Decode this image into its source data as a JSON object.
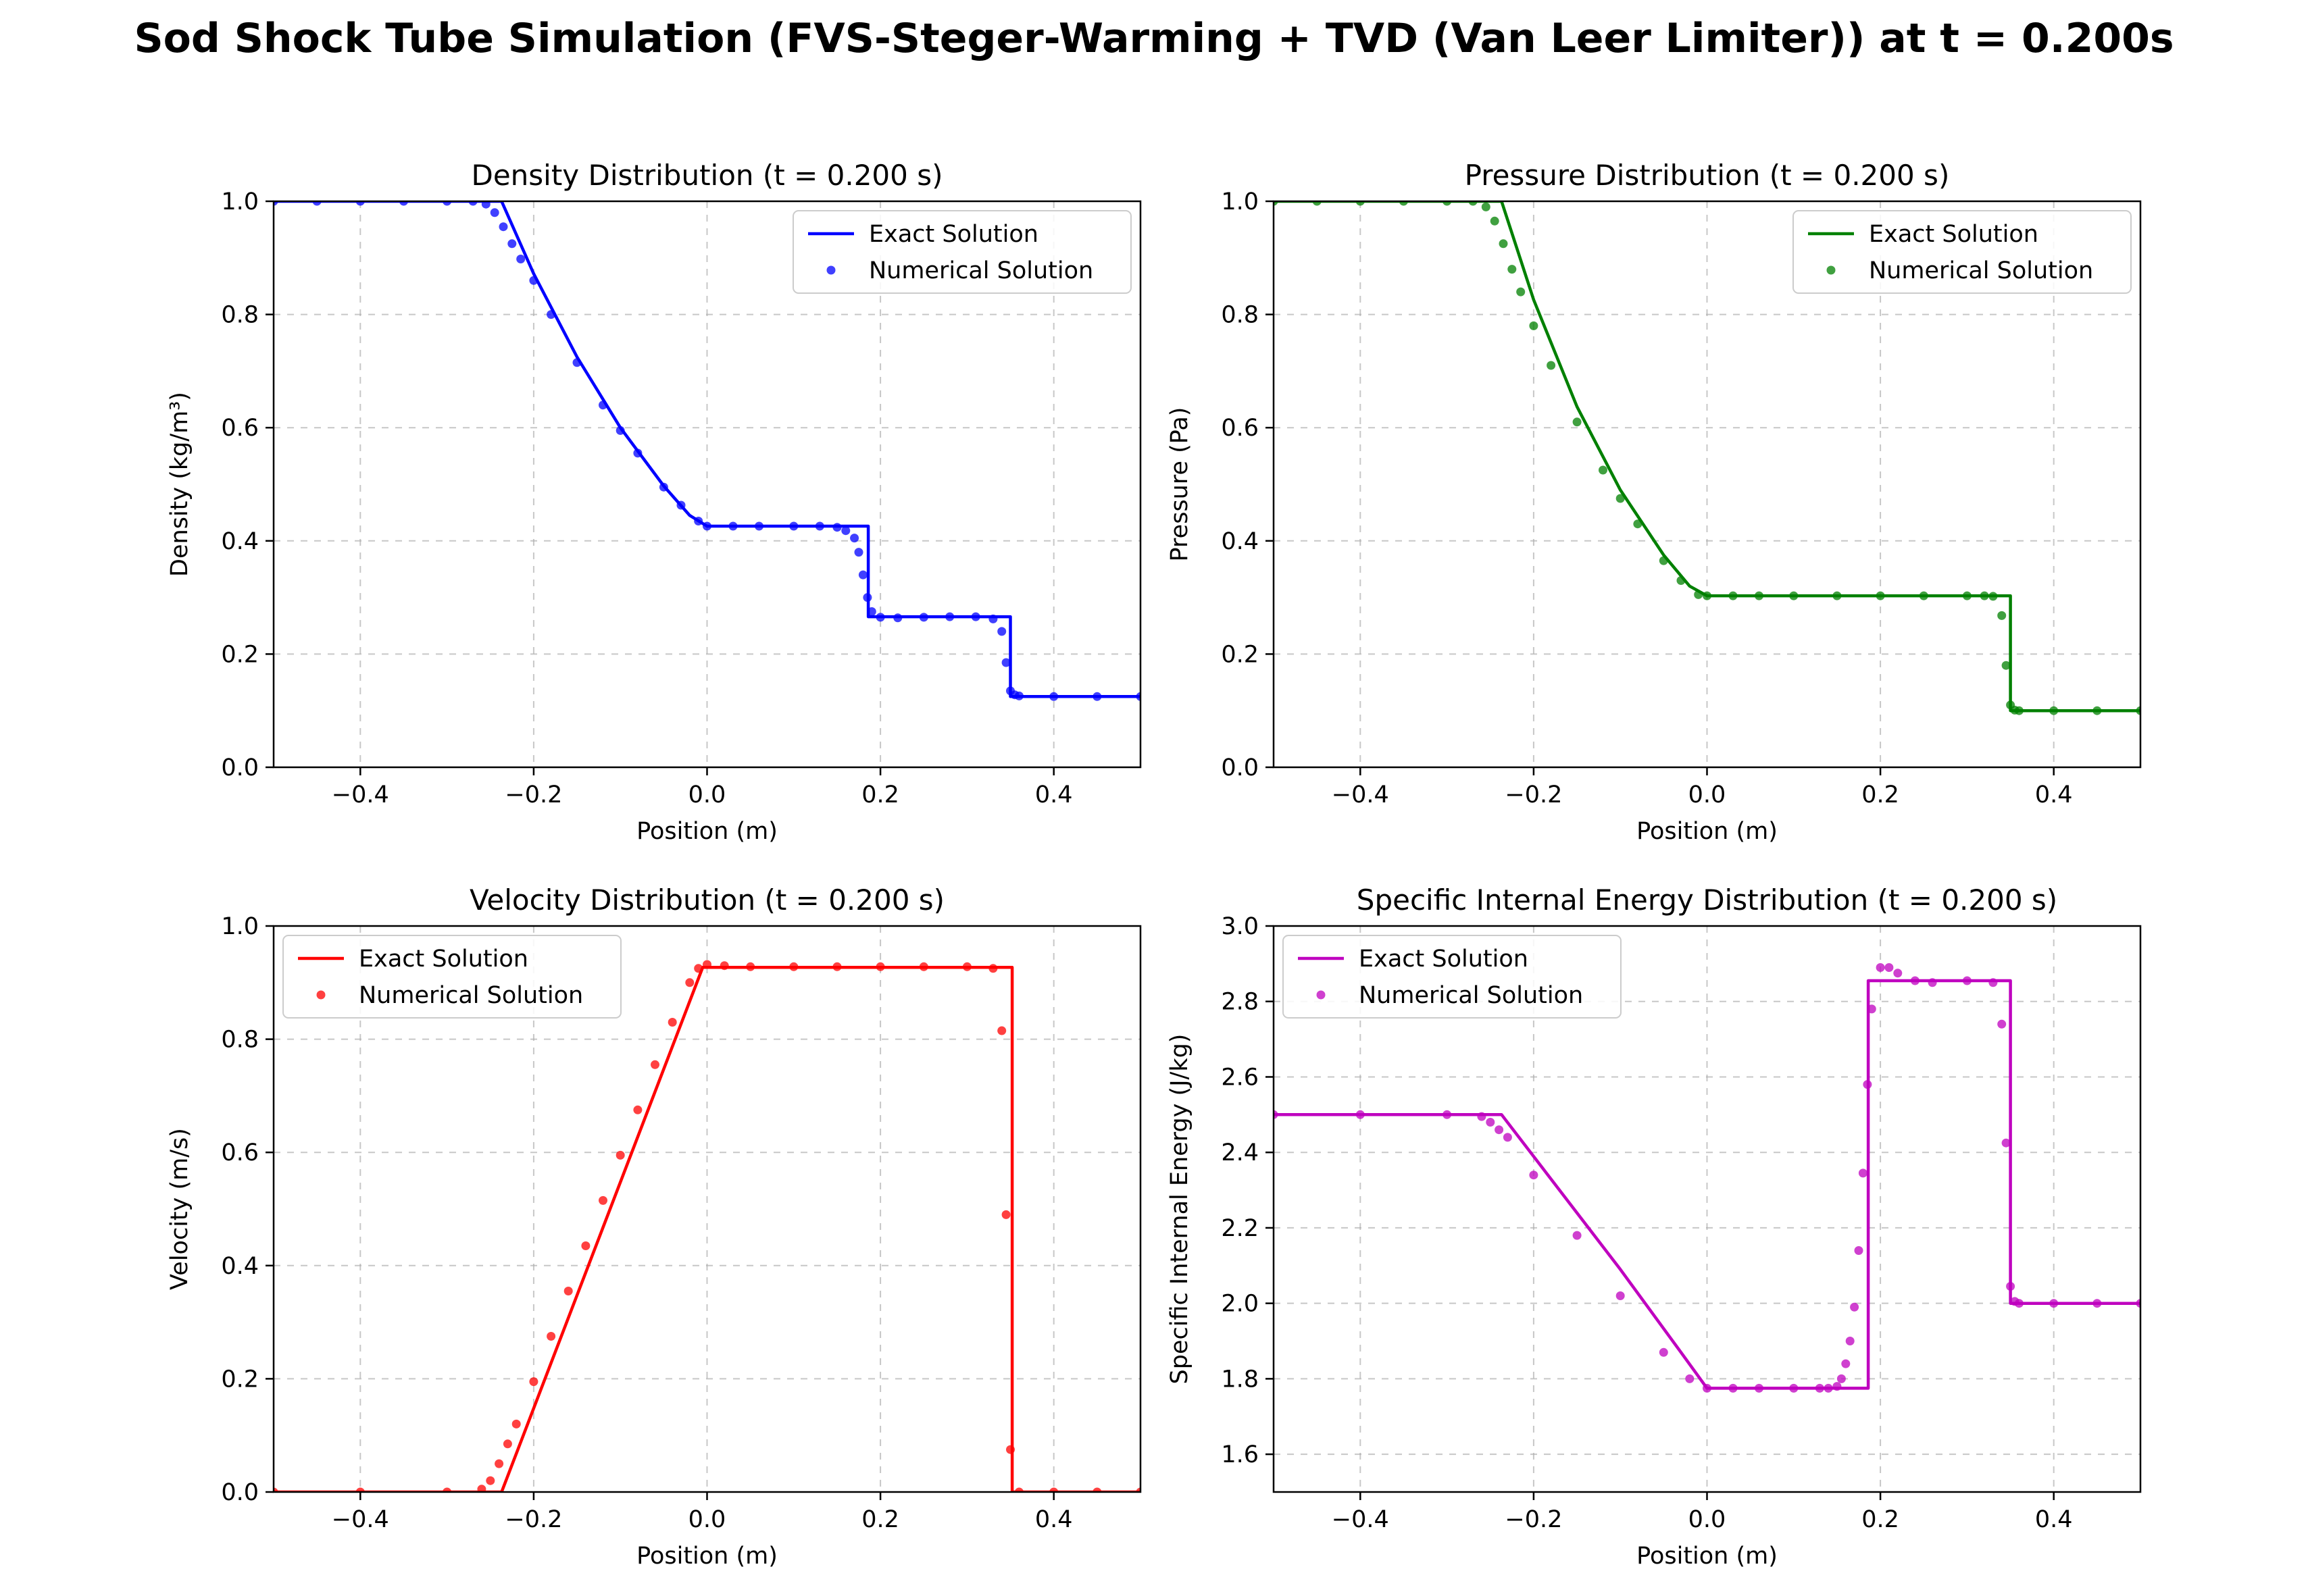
{
  "figure": {
    "suptitle": "Sod Shock Tube Simulation (FVS-Steger-Warming + TVD (Van Leer Limiter)) at t = 0.200s"
  },
  "chart_data": [
    {
      "type": "line",
      "title": "Density Distribution (t = 0.200 s)",
      "xlabel": "Position (m)",
      "ylabel": "Density (kg/m³)",
      "xlim": [
        -0.5,
        0.5
      ],
      "ylim": [
        0.0,
        1.0
      ],
      "xticks": [
        -0.4,
        -0.2,
        0.0,
        0.2,
        0.4
      ],
      "xtick_labels": [
        "−0.4",
        "−0.2",
        "0.0",
        "0.2",
        "0.4"
      ],
      "yticks": [
        0.0,
        0.2,
        0.4,
        0.6,
        0.8,
        1.0
      ],
      "ytick_labels": [
        "0.0",
        "0.2",
        "0.4",
        "0.6",
        "0.8",
        "1.0"
      ],
      "grid": true,
      "legend_position": "top-right",
      "color": "#0000ff",
      "series": [
        {
          "name": "Exact Solution",
          "kind": "line",
          "x": [
            -0.5,
            -0.237,
            -0.2,
            -0.15,
            -0.1,
            -0.05,
            -0.02,
            0.0,
            0.186,
            0.186,
            0.35,
            0.35,
            0.5
          ],
          "y": [
            1.0,
            1.0,
            0.872,
            0.725,
            0.6,
            0.497,
            0.445,
            0.426,
            0.426,
            0.266,
            0.266,
            0.125,
            0.125
          ]
        },
        {
          "name": "Numerical Solution",
          "kind": "scatter",
          "x": [
            -0.5,
            -0.45,
            -0.4,
            -0.35,
            -0.3,
            -0.27,
            -0.255,
            -0.245,
            -0.235,
            -0.225,
            -0.215,
            -0.2,
            -0.18,
            -0.15,
            -0.12,
            -0.1,
            -0.08,
            -0.05,
            -0.03,
            -0.01,
            0.0,
            0.03,
            0.06,
            0.1,
            0.13,
            0.15,
            0.16,
            0.17,
            0.175,
            0.18,
            0.185,
            0.19,
            0.2,
            0.22,
            0.25,
            0.28,
            0.31,
            0.33,
            0.34,
            0.345,
            0.35,
            0.355,
            0.36,
            0.4,
            0.45,
            0.5
          ],
          "y": [
            1.0,
            1.0,
            1.0,
            1.0,
            1.0,
            1.0,
            0.995,
            0.98,
            0.955,
            0.925,
            0.898,
            0.86,
            0.8,
            0.715,
            0.64,
            0.595,
            0.555,
            0.495,
            0.463,
            0.435,
            0.426,
            0.426,
            0.426,
            0.426,
            0.426,
            0.424,
            0.418,
            0.405,
            0.38,
            0.34,
            0.3,
            0.275,
            0.265,
            0.264,
            0.265,
            0.266,
            0.266,
            0.262,
            0.24,
            0.185,
            0.135,
            0.128,
            0.126,
            0.125,
            0.125,
            0.125
          ]
        }
      ]
    },
    {
      "type": "line",
      "title": "Pressure Distribution (t = 0.200 s)",
      "xlabel": "Position (m)",
      "ylabel": "Pressure (Pa)",
      "xlim": [
        -0.5,
        0.5
      ],
      "ylim": [
        0.0,
        1.0
      ],
      "xticks": [
        -0.4,
        -0.2,
        0.0,
        0.2,
        0.4
      ],
      "xtick_labels": [
        "−0.4",
        "−0.2",
        "0.0",
        "0.2",
        "0.4"
      ],
      "yticks": [
        0.0,
        0.2,
        0.4,
        0.6,
        0.8,
        1.0
      ],
      "ytick_labels": [
        "0.0",
        "0.2",
        "0.4",
        "0.6",
        "0.8",
        "1.0"
      ],
      "grid": true,
      "legend_position": "top-right",
      "color": "#008000",
      "series": [
        {
          "name": "Exact Solution",
          "kind": "line",
          "x": [
            -0.5,
            -0.237,
            -0.2,
            -0.15,
            -0.1,
            -0.05,
            -0.02,
            0.0,
            0.35,
            0.35,
            0.5
          ],
          "y": [
            1.0,
            1.0,
            0.826,
            0.637,
            0.49,
            0.375,
            0.32,
            0.303,
            0.303,
            0.1,
            0.1
          ]
        },
        {
          "name": "Numerical Solution",
          "kind": "scatter",
          "x": [
            -0.5,
            -0.45,
            -0.4,
            -0.35,
            -0.3,
            -0.27,
            -0.255,
            -0.245,
            -0.235,
            -0.225,
            -0.215,
            -0.2,
            -0.18,
            -0.15,
            -0.12,
            -0.1,
            -0.08,
            -0.05,
            -0.03,
            -0.01,
            0.0,
            0.03,
            0.06,
            0.1,
            0.15,
            0.2,
            0.25,
            0.3,
            0.32,
            0.33,
            0.34,
            0.345,
            0.35,
            0.355,
            0.36,
            0.4,
            0.45,
            0.5
          ],
          "y": [
            1.0,
            1.0,
            1.0,
            1.0,
            1.0,
            1.0,
            0.99,
            0.965,
            0.925,
            0.88,
            0.84,
            0.78,
            0.71,
            0.61,
            0.525,
            0.475,
            0.43,
            0.365,
            0.33,
            0.305,
            0.303,
            0.303,
            0.303,
            0.303,
            0.303,
            0.303,
            0.303,
            0.303,
            0.303,
            0.302,
            0.268,
            0.18,
            0.11,
            0.101,
            0.1,
            0.1,
            0.1,
            0.1
          ]
        }
      ]
    },
    {
      "type": "line",
      "title": "Velocity Distribution (t = 0.200 s)",
      "xlabel": "Position (m)",
      "ylabel": "Velocity (m/s)",
      "xlim": [
        -0.5,
        0.5
      ],
      "ylim": [
        0.0,
        1.0
      ],
      "xticks": [
        -0.4,
        -0.2,
        0.0,
        0.2,
        0.4
      ],
      "xtick_labels": [
        "−0.4",
        "−0.2",
        "0.0",
        "0.2",
        "0.4"
      ],
      "yticks": [
        0.0,
        0.2,
        0.4,
        0.6,
        0.8,
        1.0
      ],
      "ytick_labels": [
        "0.0",
        "0.2",
        "0.4",
        "0.6",
        "0.8",
        "1.0"
      ],
      "grid": true,
      "legend_position": "top-left",
      "color": "#ff0000",
      "series": [
        {
          "name": "Exact Solution",
          "kind": "line",
          "x": [
            -0.5,
            -0.237,
            -0.005,
            0.352,
            0.352,
            0.5
          ],
          "y": [
            0.0,
            0.0,
            0.927,
            0.927,
            0.0,
            0.0
          ]
        },
        {
          "name": "Numerical Solution",
          "kind": "scatter",
          "x": [
            -0.5,
            -0.4,
            -0.3,
            -0.26,
            -0.25,
            -0.24,
            -0.23,
            -0.22,
            -0.2,
            -0.18,
            -0.16,
            -0.14,
            -0.12,
            -0.1,
            -0.08,
            -0.06,
            -0.04,
            -0.02,
            -0.01,
            0.0,
            0.02,
            0.05,
            0.1,
            0.15,
            0.2,
            0.25,
            0.3,
            0.33,
            0.34,
            0.345,
            0.35,
            0.36,
            0.4,
            0.45,
            0.5
          ],
          "y": [
            0.0,
            0.0,
            0.0,
            0.005,
            0.02,
            0.05,
            0.085,
            0.12,
            0.195,
            0.275,
            0.355,
            0.435,
            0.515,
            0.595,
            0.675,
            0.755,
            0.83,
            0.9,
            0.925,
            0.932,
            0.93,
            0.928,
            0.928,
            0.928,
            0.928,
            0.928,
            0.928,
            0.925,
            0.815,
            0.49,
            0.075,
            0.0,
            0.0,
            0.0,
            0.0
          ]
        }
      ]
    },
    {
      "type": "line",
      "title": "Specific Internal Energy Distribution (t = 0.200 s)",
      "xlabel": "Position (m)",
      "ylabel": "Specific Internal Energy (J/kg)",
      "xlim": [
        -0.5,
        0.5
      ],
      "ylim": [
        1.5,
        3.0
      ],
      "xticks": [
        -0.4,
        -0.2,
        0.0,
        0.2,
        0.4
      ],
      "xtick_labels": [
        "−0.4",
        "−0.2",
        "0.0",
        "0.2",
        "0.4"
      ],
      "yticks": [
        1.6,
        1.8,
        2.0,
        2.2,
        2.4,
        2.6,
        2.8,
        3.0
      ],
      "ytick_labels": [
        "1.6",
        "1.8",
        "2.0",
        "2.2",
        "2.4",
        "2.6",
        "2.8",
        "3.0"
      ],
      "grid": true,
      "legend_position": "top-left",
      "color": "#bf00bf",
      "series": [
        {
          "name": "Exact Solution",
          "kind": "line",
          "x": [
            -0.5,
            -0.237,
            -0.1,
            -0.03,
            0.0,
            0.186,
            0.186,
            0.35,
            0.35,
            0.5
          ],
          "y": [
            2.5,
            2.5,
            2.09,
            1.87,
            1.775,
            1.775,
            2.855,
            2.855,
            2.0,
            2.0
          ]
        },
        {
          "name": "Numerical Solution",
          "kind": "scatter",
          "x": [
            -0.5,
            -0.4,
            -0.3,
            -0.26,
            -0.25,
            -0.24,
            -0.23,
            -0.2,
            -0.15,
            -0.1,
            -0.05,
            -0.02,
            0.0,
            0.03,
            0.06,
            0.1,
            0.13,
            0.14,
            0.15,
            0.155,
            0.16,
            0.165,
            0.17,
            0.175,
            0.18,
            0.185,
            0.19,
            0.2,
            0.21,
            0.22,
            0.24,
            0.26,
            0.3,
            0.33,
            0.34,
            0.345,
            0.35,
            0.355,
            0.36,
            0.4,
            0.45,
            0.5
          ],
          "y": [
            2.5,
            2.5,
            2.5,
            2.495,
            2.48,
            2.46,
            2.44,
            2.34,
            2.18,
            2.02,
            1.87,
            1.8,
            1.775,
            1.775,
            1.775,
            1.775,
            1.775,
            1.775,
            1.78,
            1.8,
            1.84,
            1.9,
            1.99,
            2.14,
            2.345,
            2.58,
            2.78,
            2.89,
            2.89,
            2.875,
            2.855,
            2.85,
            2.855,
            2.85,
            2.74,
            2.425,
            2.045,
            2.005,
            2.0,
            2.0,
            2.0,
            2.0
          ]
        }
      ]
    }
  ]
}
